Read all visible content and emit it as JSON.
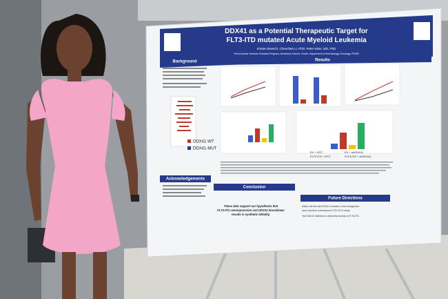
{
  "poster": {
    "title_line1": "DDX41 as a Potential Therapeutic Target for",
    "title_line2": "FLT3-ITD mutated Acute Myeloid Leukemia",
    "authors": "Kirsten Boesch, Chenchen Li, PhD, Peter Klein, MD, PhD",
    "affiliations": "Penn Access Summer Scholars Program, Abramson Cancer Center, Department of Hematology-Oncology, PSOM",
    "sections": {
      "background": "Background",
      "results": "Results",
      "acknowledgements": "Acknowledgements",
      "conclusion": "Conclusion",
      "future": "Future Directions"
    },
    "legend": [
      "DDX41-WT",
      "DDX41-MUT"
    ],
    "conclusion_text": [
      "These data support our hypothesis that",
      "FLT3-ITD overexpression and DDX41 knockdown",
      "results in synthetic lethality."
    ],
    "future_bullets": [
      "Utilize cell line with DDX41 mutation in the endogenous",
      "locus and then overexpress FLT3-ITD to study",
      "Test DDX41 inhibitors to determine toxicity to FLT3-ITD"
    ],
    "chart_legend": [
      "EV + NTC",
      "FLT3-ITD + NTC",
      "EV + shDDX41",
      "FLT3-ITD + shDDX41"
    ]
  }
}
